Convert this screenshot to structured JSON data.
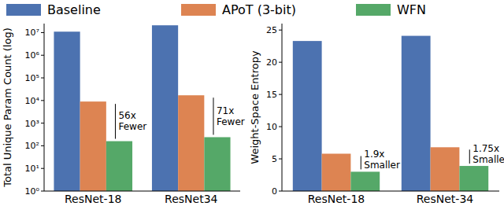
{
  "chart_data": [
    {
      "type": "bar",
      "log": "y",
      "legend": "top",
      "y_label": "Total Unique Param Count (log)",
      "categories": [
        "ResNet-18",
        "ResNet34"
      ],
      "series": [
        {
          "name": "Baseline",
          "color": "#4c72b0",
          "values": [
            11000000,
            21000000
          ]
        },
        {
          "name": "APoT (3-bit)",
          "color": "#dd8452",
          "values": [
            9000,
            17000
          ]
        },
        {
          "name": "WFN",
          "color": "#55a868",
          "values": [
            160,
            240
          ]
        }
      ],
      "ylim": [
        1,
        25000000
      ],
      "yticks": [
        {
          "value": 1,
          "label": "10⁰"
        },
        {
          "value": 10,
          "label": "10¹"
        },
        {
          "value": 100,
          "label": "10²"
        },
        {
          "value": 1000,
          "label": "10³"
        },
        {
          "value": 10000,
          "label": "10⁴"
        },
        {
          "value": 100000,
          "label": "10⁵"
        },
        {
          "value": 1000000,
          "label": "10⁶"
        },
        {
          "value": 10000000,
          "label": "10⁷"
        }
      ],
      "annotations": [
        [
          "56x",
          "Fewer"
        ],
        [
          "71x",
          "Fewer"
        ]
      ]
    },
    {
      "type": "bar",
      "y_label": "Weight-Space Entropy",
      "categories": [
        "ResNet-18",
        "ResNet-34"
      ],
      "series": [
        {
          "color": "#4c72b0",
          "values": [
            23.3,
            24.1
          ]
        },
        {
          "color": "#dd8452",
          "values": [
            5.8,
            6.8
          ]
        },
        {
          "color": "#55a868",
          "values": [
            3.0,
            3.9
          ]
        }
      ],
      "ylim": [
        0,
        26
      ],
      "yticks": [
        0,
        5,
        10,
        15,
        20,
        25
      ],
      "annotations": [
        [
          "1.9x",
          "Smaller"
        ],
        [
          "1.75x",
          "Smaller"
        ]
      ]
    }
  ]
}
